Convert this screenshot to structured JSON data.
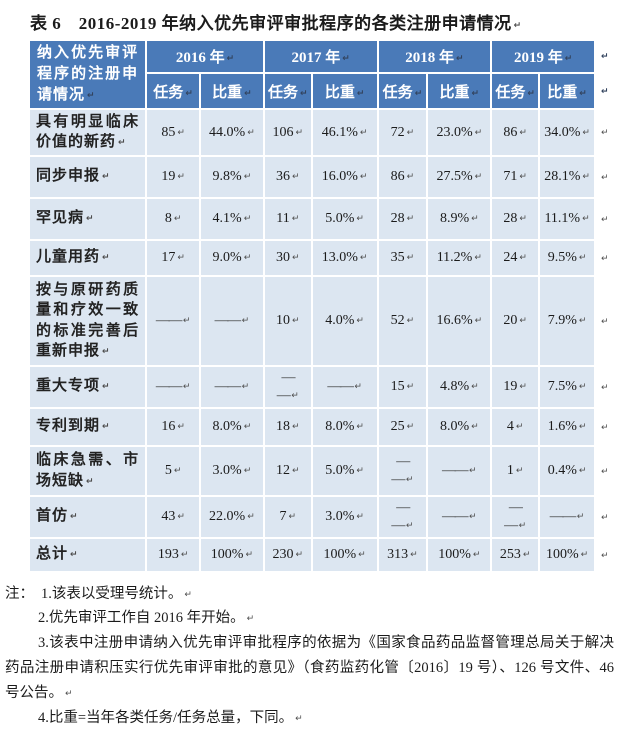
{
  "title": "表 6　2016-2019 年纳入优先审评审批程序的各类注册申请情况",
  "table": {
    "corner_header": "纳入优先审评程序的注册申请情况",
    "year_headers": [
      "2016 年",
      "2017 年",
      "2018 年",
      "2019 年"
    ],
    "sub_headers": [
      "任务",
      "比重"
    ],
    "rows": [
      {
        "label": "具有明显临床价值的新药",
        "values": [
          "85",
          "44.0%",
          "106",
          "46.1%",
          "72",
          "23.0%",
          "86",
          "34.0%"
        ]
      },
      {
        "label": "同步申报",
        "values": [
          "19",
          "9.8%",
          "36",
          "16.0%",
          "86",
          "27.5%",
          "71",
          "28.1%"
        ]
      },
      {
        "label": "罕见病",
        "values": [
          "8",
          "4.1%",
          "11",
          "5.0%",
          "28",
          "8.9%",
          "28",
          "11.1%"
        ]
      },
      {
        "label": "儿童用药",
        "values": [
          "17",
          "9.0%",
          "30",
          "13.0%",
          "35",
          "11.2%",
          "24",
          "9.5%"
        ]
      },
      {
        "label": "按与原研药质量和疗效一致的标准完善后重新申报",
        "values": [
          "——",
          "——",
          "10",
          "4.0%",
          "52",
          "16.6%",
          "20",
          "7.9%"
        ]
      },
      {
        "label": "重大专项",
        "values": [
          "——",
          "——",
          "—\n—",
          "——",
          "15",
          "4.8%",
          "19",
          "7.5%"
        ]
      },
      {
        "label": "专利到期",
        "values": [
          "16",
          "8.0%",
          "18",
          "8.0%",
          "25",
          "8.0%",
          "4",
          "1.6%"
        ]
      },
      {
        "label": "临床急需、市场短缺",
        "values": [
          "5",
          "3.0%",
          "12",
          "5.0%",
          "—\n—",
          "——",
          "1",
          "0.4%"
        ]
      },
      {
        "label": "首仿",
        "values": [
          "43",
          "22.0%",
          "7",
          "3.0%",
          "—\n—",
          "——",
          "—\n—",
          "——"
        ]
      },
      {
        "label": "总计",
        "values": [
          "193",
          "100%",
          "230",
          "100%",
          "313",
          "100%",
          "253",
          "100%"
        ]
      }
    ]
  },
  "notes": {
    "prefix": "注：",
    "items": [
      "1.该表以受理号统计。",
      "2.优先审评工作自 2016 年开始。",
      "3.该表中注册申请纳入优先审评审批程序的依据为《国家食品药品监督管理总局关于解决药品注册申请积压实行优先审评审批的意见》（食药监药化管〔2016〕19 号）、126 号文件、46 号公告。",
      "4.比重=当年各类任务/任务总量，下同。"
    ]
  },
  "artifacts": {
    "paragraph_mark": "↵"
  },
  "colors": {
    "header_bg": "#4a7ab8",
    "body_bg": "#dce6f1",
    "grid": "#ffffff",
    "header_text": "#ffffff",
    "text": "#1b1b1b",
    "mark": "#4d4d4d"
  }
}
